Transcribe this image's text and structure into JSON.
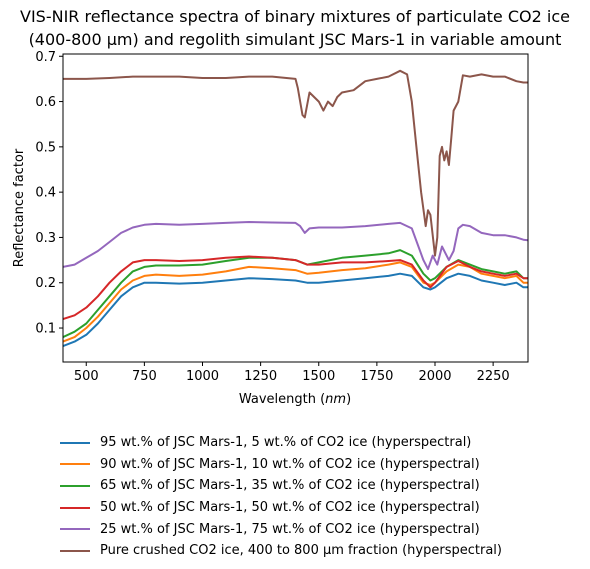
{
  "chart_data": {
    "type": "line",
    "title_lines": [
      "VIS-NIR reflectance spectra of binary mixtures of particulate CO2 ice",
      "(400-800 µm) and regolith simulant JSC Mars-1 in variable amount"
    ],
    "xlabel": "Wavelength (nm)",
    "ylabel": "Reflectance factor",
    "xlim": [
      400,
      2400
    ],
    "ylim": [
      0.025,
      0.705
    ],
    "xticks": [
      500,
      750,
      1000,
      1250,
      1500,
      1750,
      2000,
      2250
    ],
    "yticks": [
      0.1,
      0.2,
      0.3,
      0.4,
      0.5,
      0.6,
      0.7
    ],
    "legend_position": "below plot",
    "series": [
      {
        "name": "95 wt.% of JSC Mars-1, 5 wt.% of CO2 ice (hyperspectral)",
        "color": "#1f77b4",
        "x": [
          400,
          450,
          500,
          550,
          600,
          650,
          700,
          750,
          800,
          900,
          1000,
          1100,
          1200,
          1300,
          1400,
          1450,
          1500,
          1600,
          1700,
          1800,
          1850,
          1900,
          1950,
          1980,
          2000,
          2050,
          2100,
          2150,
          2200,
          2250,
          2300,
          2350,
          2380,
          2400
        ],
        "values": [
          0.06,
          0.07,
          0.085,
          0.11,
          0.14,
          0.17,
          0.19,
          0.2,
          0.2,
          0.198,
          0.2,
          0.205,
          0.21,
          0.208,
          0.205,
          0.2,
          0.2,
          0.205,
          0.21,
          0.215,
          0.22,
          0.215,
          0.19,
          0.185,
          0.19,
          0.21,
          0.22,
          0.215,
          0.205,
          0.2,
          0.195,
          0.2,
          0.19,
          0.19
        ]
      },
      {
        "name": "90 wt.% of JSC Mars-1, 10 wt.% of CO2 ice (hyperspectral)",
        "color": "#ff7f0e",
        "x": [
          400,
          450,
          500,
          550,
          600,
          650,
          700,
          750,
          800,
          900,
          1000,
          1100,
          1200,
          1300,
          1400,
          1450,
          1500,
          1600,
          1700,
          1800,
          1850,
          1900,
          1950,
          1980,
          2000,
          2050,
          2100,
          2150,
          2200,
          2250,
          2300,
          2350,
          2380,
          2400
        ],
        "values": [
          0.07,
          0.08,
          0.1,
          0.125,
          0.155,
          0.185,
          0.205,
          0.215,
          0.218,
          0.215,
          0.218,
          0.225,
          0.235,
          0.232,
          0.228,
          0.22,
          0.222,
          0.228,
          0.232,
          0.24,
          0.245,
          0.235,
          0.2,
          0.195,
          0.2,
          0.225,
          0.24,
          0.235,
          0.22,
          0.215,
          0.21,
          0.215,
          0.2,
          0.2
        ]
      },
      {
        "name": "65 wt.% of JSC Mars-1, 35 wt.% of CO2 ice (hyperspectral)",
        "color": "#2ca02c",
        "x": [
          400,
          450,
          500,
          550,
          600,
          650,
          700,
          750,
          800,
          900,
          1000,
          1100,
          1200,
          1300,
          1400,
          1450,
          1500,
          1600,
          1700,
          1800,
          1850,
          1900,
          1950,
          1980,
          2000,
          2050,
          2100,
          2150,
          2200,
          2250,
          2300,
          2350,
          2380,
          2400
        ],
        "values": [
          0.08,
          0.092,
          0.11,
          0.14,
          0.17,
          0.2,
          0.225,
          0.235,
          0.238,
          0.238,
          0.24,
          0.248,
          0.255,
          0.255,
          0.25,
          0.24,
          0.245,
          0.255,
          0.26,
          0.265,
          0.272,
          0.26,
          0.22,
          0.205,
          0.21,
          0.235,
          0.25,
          0.24,
          0.23,
          0.225,
          0.22,
          0.225,
          0.21,
          0.21
        ]
      },
      {
        "name": "50 wt.% of JSC Mars-1, 50 wt.% of CO2 ice (hyperspectral)",
        "color": "#d62728",
        "x": [
          400,
          450,
          500,
          550,
          600,
          650,
          700,
          750,
          800,
          900,
          1000,
          1100,
          1200,
          1300,
          1400,
          1450,
          1500,
          1600,
          1700,
          1800,
          1850,
          1900,
          1950,
          1980,
          2000,
          2050,
          2100,
          2150,
          2200,
          2250,
          2300,
          2350,
          2380,
          2400
        ],
        "values": [
          0.12,
          0.128,
          0.145,
          0.17,
          0.2,
          0.225,
          0.245,
          0.25,
          0.25,
          0.248,
          0.25,
          0.255,
          0.258,
          0.255,
          0.25,
          0.24,
          0.24,
          0.245,
          0.245,
          0.248,
          0.25,
          0.24,
          0.205,
          0.19,
          0.2,
          0.235,
          0.248,
          0.235,
          0.225,
          0.22,
          0.215,
          0.22,
          0.21,
          0.21
        ]
      },
      {
        "name": "25 wt.% of JSC Mars-1, 75 wt.% of CO2 ice (hyperspectral)",
        "color": "#9467bd",
        "x": [
          400,
          450,
          500,
          550,
          600,
          650,
          700,
          750,
          800,
          900,
          1000,
          1100,
          1200,
          1300,
          1400,
          1420,
          1440,
          1460,
          1500,
          1600,
          1700,
          1800,
          1850,
          1900,
          1950,
          1970,
          1990,
          2010,
          2030,
          2060,
          2080,
          2100,
          2120,
          2150,
          2200,
          2250,
          2300,
          2350,
          2380,
          2400
        ],
        "values": [
          0.235,
          0.24,
          0.255,
          0.27,
          0.29,
          0.31,
          0.322,
          0.328,
          0.33,
          0.328,
          0.33,
          0.332,
          0.334,
          0.333,
          0.332,
          0.325,
          0.31,
          0.32,
          0.322,
          0.322,
          0.325,
          0.33,
          0.332,
          0.32,
          0.25,
          0.23,
          0.26,
          0.24,
          0.28,
          0.25,
          0.27,
          0.32,
          0.328,
          0.325,
          0.31,
          0.305,
          0.305,
          0.3,
          0.295,
          0.294
        ]
      },
      {
        "name": "Pure crushed CO2 ice, 400 to 800 µm fraction (hyperspectral)",
        "color": "#8c564b",
        "x": [
          400,
          500,
          600,
          700,
          800,
          900,
          1000,
          1100,
          1200,
          1300,
          1400,
          1410,
          1430,
          1440,
          1460,
          1500,
          1520,
          1540,
          1560,
          1580,
          1600,
          1650,
          1700,
          1750,
          1800,
          1850,
          1880,
          1900,
          1920,
          1940,
          1960,
          1970,
          1980,
          2000,
          2010,
          2020,
          2030,
          2040,
          2050,
          2060,
          2070,
          2080,
          2100,
          2120,
          2150,
          2200,
          2250,
          2300,
          2350,
          2380,
          2400
        ],
        "values": [
          0.65,
          0.65,
          0.652,
          0.655,
          0.655,
          0.655,
          0.652,
          0.652,
          0.655,
          0.655,
          0.65,
          0.63,
          0.57,
          0.565,
          0.62,
          0.6,
          0.58,
          0.6,
          0.59,
          0.61,
          0.62,
          0.625,
          0.645,
          0.65,
          0.655,
          0.668,
          0.66,
          0.6,
          0.5,
          0.4,
          0.325,
          0.36,
          0.35,
          0.26,
          0.3,
          0.48,
          0.5,
          0.47,
          0.49,
          0.46,
          0.52,
          0.58,
          0.6,
          0.658,
          0.655,
          0.66,
          0.655,
          0.655,
          0.645,
          0.642,
          0.642
        ]
      }
    ]
  }
}
